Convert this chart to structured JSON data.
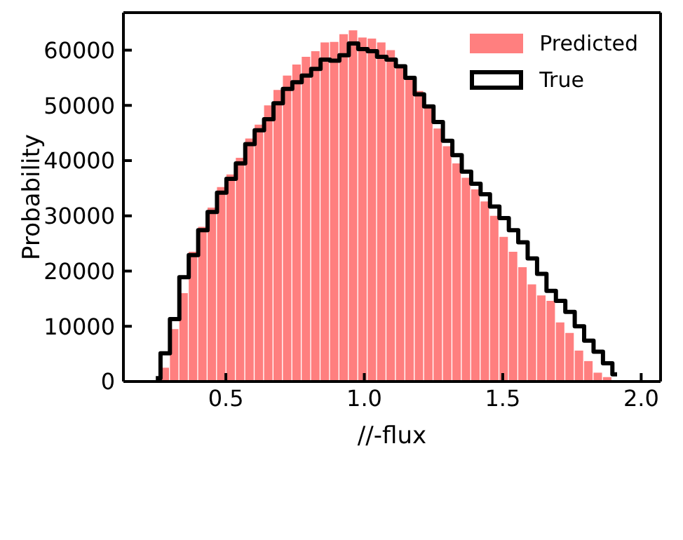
{
  "chart_data": {
    "type": "histogram",
    "xlabel": "//-flux",
    "ylabel": "Probability",
    "bins": [
      0.23,
      0.264,
      0.298,
      0.332,
      0.366,
      0.4,
      0.434,
      0.468,
      0.502,
      0.536,
      0.57,
      0.604,
      0.638,
      0.672,
      0.706,
      0.74,
      0.774,
      0.808,
      0.842,
      0.876,
      0.91,
      0.944,
      0.978,
      1.012,
      1.046,
      1.08,
      1.114,
      1.148,
      1.182,
      1.216,
      1.25,
      1.284,
      1.318,
      1.352,
      1.386,
      1.42,
      1.454,
      1.488,
      1.522,
      1.556,
      1.59,
      1.624,
      1.658,
      1.692,
      1.726,
      1.76,
      1.794,
      1.828,
      1.862,
      1.896,
      1.93
    ],
    "series": [
      {
        "name": "Predicted",
        "color": "#ff7f7f",
        "values": [
          0,
          2500,
          9500,
          16000,
          23500,
          28000,
          31500,
          35200,
          37500,
          40500,
          44000,
          46500,
          50000,
          52800,
          55400,
          57400,
          58800,
          59800,
          61400,
          61500,
          62900,
          63600,
          62300,
          62100,
          61400,
          60000,
          57400,
          55000,
          52600,
          50100,
          45800,
          42600,
          39500,
          36900,
          34800,
          32600,
          30000,
          26200,
          23500,
          20700,
          17600,
          15600,
          14600,
          10700,
          8800,
          5600,
          3700,
          1600,
          800,
          0
        ]
      },
      {
        "name": "True",
        "type": "step",
        "color": "#000000",
        "x": [
          0.247,
          0.281,
          0.315,
          0.349,
          0.383,
          0.417,
          0.451,
          0.485,
          0.519,
          0.553,
          0.587,
          0.621,
          0.655,
          0.689,
          0.723,
          0.757,
          0.791,
          0.825,
          0.859,
          0.893,
          0.927,
          0.961,
          0.995,
          1.029,
          1.063,
          1.097,
          1.131,
          1.165,
          1.199,
          1.233,
          1.267,
          1.301,
          1.335,
          1.369,
          1.403,
          1.437,
          1.471,
          1.505,
          1.539,
          1.573,
          1.607,
          1.641,
          1.675,
          1.709,
          1.743,
          1.777,
          1.811,
          1.845,
          1.879,
          1.913
        ],
        "values": [
          600,
          5100,
          11300,
          18900,
          22900,
          27400,
          30700,
          34200,
          36700,
          39500,
          43000,
          45500,
          47500,
          50400,
          53000,
          54200,
          55400,
          56600,
          58300,
          58100,
          59100,
          61200,
          60200,
          59800,
          58800,
          58300,
          57100,
          55000,
          52000,
          49800,
          47000,
          43600,
          41000,
          38000,
          35800,
          33900,
          31700,
          29600,
          27400,
          25200,
          22300,
          19500,
          16400,
          14600,
          12600,
          10000,
          7400,
          5400,
          3300,
          1300
        ]
      }
    ],
    "xlim": [
      0.13,
      2.07
    ],
    "xticks": [
      0.5,
      {
        "value": 1,
        "label": "1.0"
      },
      1.5,
      {
        "value": 2,
        "label": "2.0"
      }
    ],
    "ylim": [
      0,
      66800
    ],
    "yticks": [
      0,
      10000,
      20000,
      30000,
      40000,
      50000,
      60000
    ],
    "legend": "top right"
  }
}
